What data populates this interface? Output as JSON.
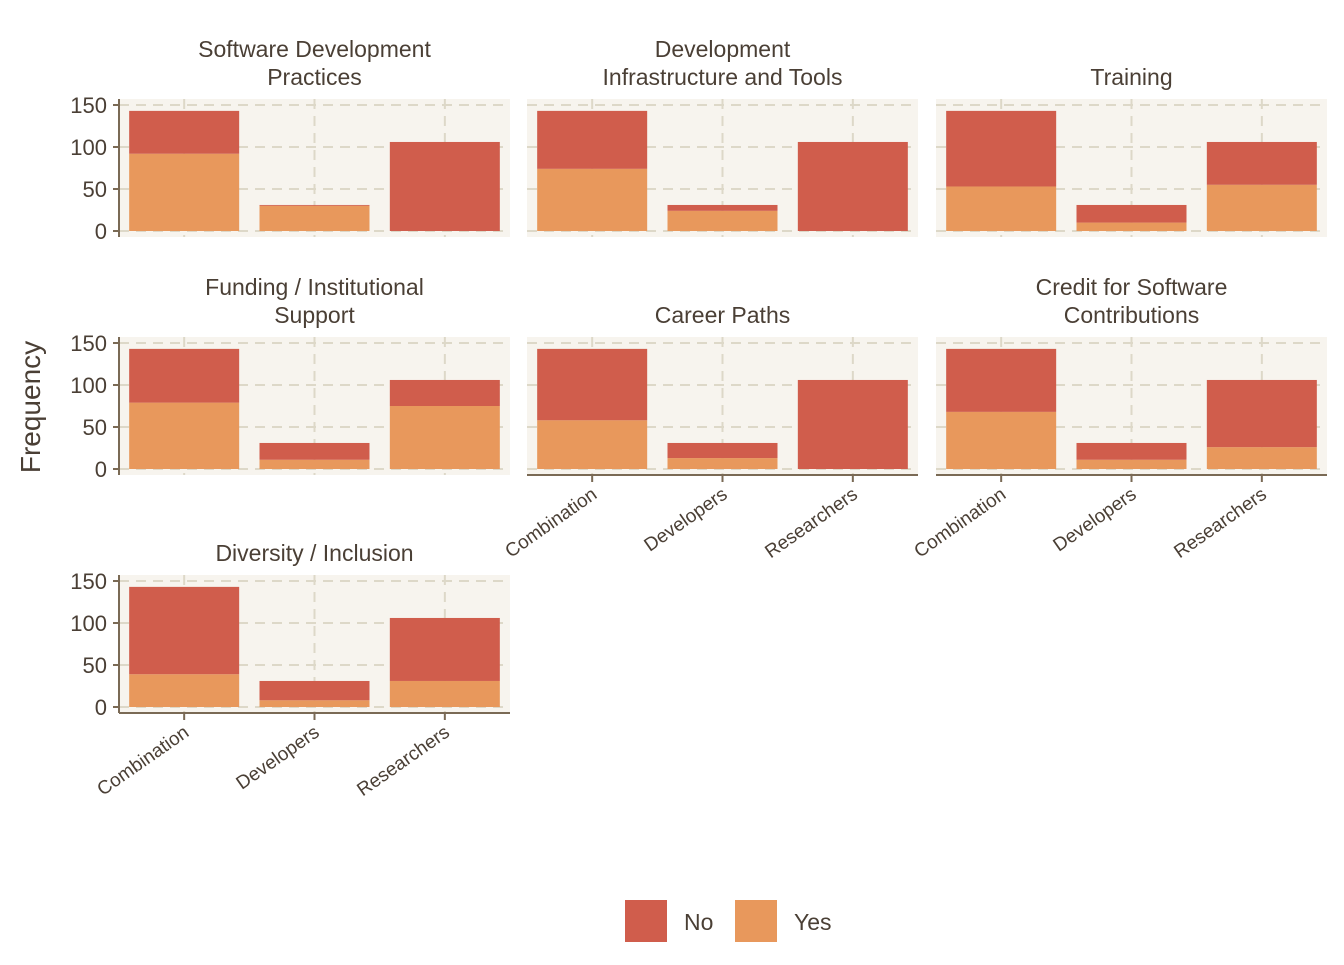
{
  "chart_data": {
    "type": "bar",
    "stacked": true,
    "ylabel": "Frequency",
    "ylim": [
      0,
      150
    ],
    "yticks": [
      "0",
      "50",
      "100",
      "150"
    ],
    "categories": [
      "Combination",
      "Developers",
      "Researchers"
    ],
    "legend": {
      "position": "bottom",
      "items": [
        {
          "name": "No",
          "color": "#D05D4C"
        },
        {
          "name": "Yes",
          "color": "#E8985C"
        }
      ]
    },
    "colors": {
      "no": "#D05D4C",
      "yes": "#E8985C",
      "panel_bg": "#F7F4EE",
      "grid": "#DDD8C8",
      "axis": "#7A6A55",
      "text": "#4A3F35"
    },
    "panels": [
      {
        "title": "Software Development\nPractices",
        "series": [
          {
            "name": "Yes",
            "values": [
              92,
              30,
              0
            ]
          },
          {
            "name": "No",
            "values": [
              51,
              1,
              106
            ]
          }
        ]
      },
      {
        "title": "Development\nInfrastructure and Tools",
        "series": [
          {
            "name": "Yes",
            "values": [
              74,
              24,
              0
            ]
          },
          {
            "name": "No",
            "values": [
              69,
              7,
              106
            ]
          }
        ]
      },
      {
        "title": "Training",
        "series": [
          {
            "name": "Yes",
            "values": [
              53,
              10,
              55
            ]
          },
          {
            "name": "No",
            "values": [
              90,
              21,
              51
            ]
          }
        ]
      },
      {
        "title": "Funding / Institutional\nSupport",
        "series": [
          {
            "name": "Yes",
            "values": [
              79,
              11,
              75
            ]
          },
          {
            "name": "No",
            "values": [
              64,
              20,
              31
            ]
          }
        ]
      },
      {
        "title": "Career Paths",
        "series": [
          {
            "name": "Yes",
            "values": [
              58,
              13,
              0
            ]
          },
          {
            "name": "No",
            "values": [
              85,
              18,
              106
            ]
          }
        ]
      },
      {
        "title": "Credit for Software\nContributions",
        "series": [
          {
            "name": "Yes",
            "values": [
              68,
              11,
              26
            ]
          },
          {
            "name": "No",
            "values": [
              75,
              20,
              80
            ]
          }
        ]
      },
      {
        "title": "Diversity / Inclusion",
        "series": [
          {
            "name": "Yes",
            "values": [
              39,
              8,
              31
            ]
          },
          {
            "name": "No",
            "values": [
              104,
              23,
              75
            ]
          }
        ]
      }
    ]
  }
}
